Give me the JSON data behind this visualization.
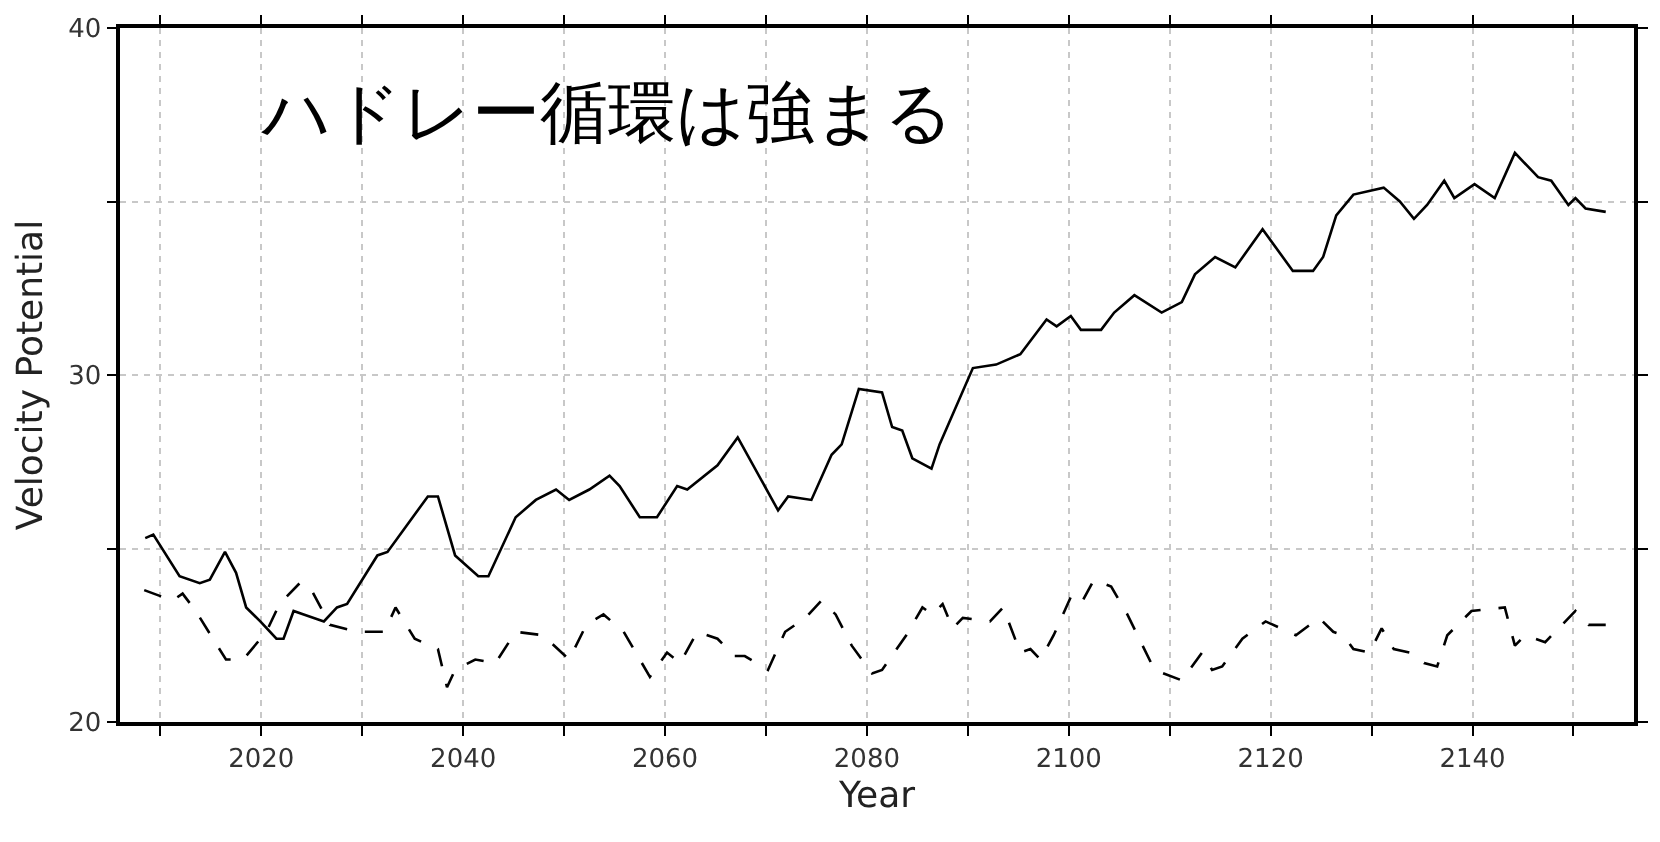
{
  "chart_data": {
    "type": "line",
    "xlabel": "Year",
    "ylabel": "Velocity Potential",
    "annotations": [
      "ハドレー循環は強まる"
    ],
    "xlim": [
      2006,
      2156
    ],
    "ylim": [
      20,
      40
    ],
    "xticks": [
      {
        "value": 2010,
        "label": null
      },
      2020,
      {
        "value": 2030,
        "label": null
      },
      2040,
      {
        "value": 2050,
        "label": null
      },
      2060,
      {
        "value": 2070,
        "label": null
      },
      2080,
      {
        "value": 2090,
        "label": null
      },
      2100,
      {
        "value": 2110,
        "label": null
      },
      2120,
      {
        "value": 2130,
        "label": null
      },
      2140,
      {
        "value": 2150,
        "label": null
      }
    ],
    "yticks": [
      20,
      {
        "value": 25,
        "label": null
      },
      30,
      {
        "value": 35,
        "label": null
      },
      40
    ],
    "grid": true,
    "legend": false,
    "marker": "none",
    "series": [
      {
        "color": "#000000",
        "line_style": "solid",
        "x": [
          2008.5,
          2009.3,
          2011.9,
          2013.9,
          2014.9,
          2016.4,
          2017.5,
          2018.5,
          2019.9,
          2021.5,
          2022.2,
          2023.2,
          2024.2,
          2026.2,
          2027.5,
          2028.5,
          2031.5,
          2032.5,
          2036.5,
          2037.5,
          2039.2,
          2041.5,
          2042.5,
          2045.2,
          2047.2,
          2049.2,
          2050.5,
          2052.5,
          2054.5,
          2055.5,
          2057.5,
          2059.2,
          2061.2,
          2062.2,
          2065.2,
          2067.2,
          2071.2,
          2072.2,
          2074.5,
          2076.5,
          2077.5,
          2079.2,
          2081.5,
          2082.5,
          2083.5,
          2084.5,
          2086.4,
          2087.2,
          2090.5,
          2092.8,
          2095.2,
          2097.8,
          2098.8,
          2100.2,
          2101.2,
          2103.2,
          2104.5,
          2106.5,
          2109.2,
          2111.2,
          2112.5,
          2114.5,
          2116.5,
          2119.2,
          2122.2,
          2124.2,
          2125.2,
          2126.5,
          2128.2,
          2131.2,
          2132.8,
          2134.2,
          2135.5,
          2137.2,
          2138.2,
          2140.2,
          2142.2,
          2144.2,
          2146.5,
          2147.8,
          2149.5,
          2150.2,
          2151.2,
          2153.2
        ],
        "values": [
          25.3,
          25.4,
          24.2,
          24.0,
          24.1,
          24.9,
          24.3,
          23.3,
          22.9,
          22.4,
          22.4,
          23.2,
          23.1,
          22.9,
          23.3,
          23.4,
          24.8,
          24.9,
          26.5,
          26.5,
          24.8,
          24.2,
          24.2,
          25.9,
          26.4,
          26.7,
          26.4,
          26.7,
          27.1,
          26.8,
          25.9,
          25.9,
          26.8,
          26.7,
          27.4,
          28.2,
          26.1,
          26.5,
          26.4,
          27.7,
          28.0,
          29.6,
          29.5,
          28.5,
          28.4,
          27.6,
          27.3,
          28.0,
          30.2,
          30.3,
          30.6,
          31.6,
          31.4,
          31.7,
          31.3,
          31.3,
          31.8,
          32.3,
          31.8,
          32.1,
          32.9,
          33.4,
          33.1,
          34.2,
          33.0,
          33.0,
          33.4,
          34.6,
          35.2,
          35.4,
          35.0,
          34.5,
          34.9,
          35.6,
          35.1,
          35.5,
          35.1,
          36.4,
          35.7,
          35.6,
          34.9,
          35.1,
          34.8,
          34.7
        ]
      },
      {
        "color": "#000000",
        "line_style": "dashed",
        "x": [
          2008.4,
          2011.2,
          2012.2,
          2013.5,
          2016.5,
          2018.2,
          2020.5,
          2021.8,
          2023.8,
          2024.8,
          2026.8,
          2029.5,
          2030.8,
          2032.2,
          2033.3,
          2035.2,
          2037.5,
          2038.4,
          2039.2,
          2041.2,
          2043.2,
          2045.2,
          2047.9,
          2050.5,
          2052.2,
          2053.9,
          2055.9,
          2058.5,
          2060.2,
          2061.5,
          2063.2,
          2065.2,
          2066.9,
          2067.9,
          2070.2,
          2071.9,
          2073.9,
          2075.5,
          2076.9,
          2078.5,
          2080.5,
          2081.5,
          2083.9,
          2085.5,
          2086.5,
          2087.5,
          2088.5,
          2089.5,
          2092.2,
          2093.5,
          2095.2,
          2096.2,
          2097.2,
          2098.5,
          2100.2,
          2101.2,
          2102.5,
          2104.2,
          2105.8,
          2108.5,
          2111.2,
          2113.2,
          2114.2,
          2115.2,
          2117.2,
          2119.5,
          2122.5,
          2124.8,
          2126.2,
          2127.2,
          2128.2,
          2129.8,
          2131.0,
          2132.2,
          2133.8,
          2135.2,
          2136.5,
          2137.5,
          2139.9,
          2143.2,
          2144.2,
          2145.2,
          2147.2,
          2150.2,
          2151.5,
          2153.2
        ],
        "values": [
          23.8,
          23.5,
          23.7,
          23.2,
          21.8,
          21.8,
          22.6,
          23.4,
          24.0,
          23.9,
          22.8,
          22.6,
          22.6,
          22.6,
          23.3,
          22.4,
          22.1,
          21.0,
          21.5,
          21.8,
          21.7,
          22.6,
          22.5,
          21.8,
          22.8,
          23.1,
          22.6,
          21.3,
          22.0,
          21.7,
          22.6,
          22.4,
          21.9,
          21.9,
          21.5,
          22.6,
          23.0,
          23.5,
          23.1,
          22.2,
          21.4,
          21.5,
          22.5,
          23.3,
          23.1,
          23.4,
          22.7,
          23.0,
          22.9,
          23.3,
          22.0,
          22.1,
          21.8,
          22.5,
          23.6,
          23.4,
          24.1,
          23.9,
          23.1,
          21.5,
          21.2,
          22.0,
          21.5,
          21.6,
          22.4,
          22.9,
          22.5,
          23.0,
          22.6,
          22.5,
          22.1,
          22.0,
          22.7,
          22.1,
          22.0,
          21.7,
          21.6,
          22.5,
          23.2,
          23.3,
          22.2,
          22.5,
          22.3,
          23.2,
          22.8,
          22.8
        ]
      }
    ]
  }
}
